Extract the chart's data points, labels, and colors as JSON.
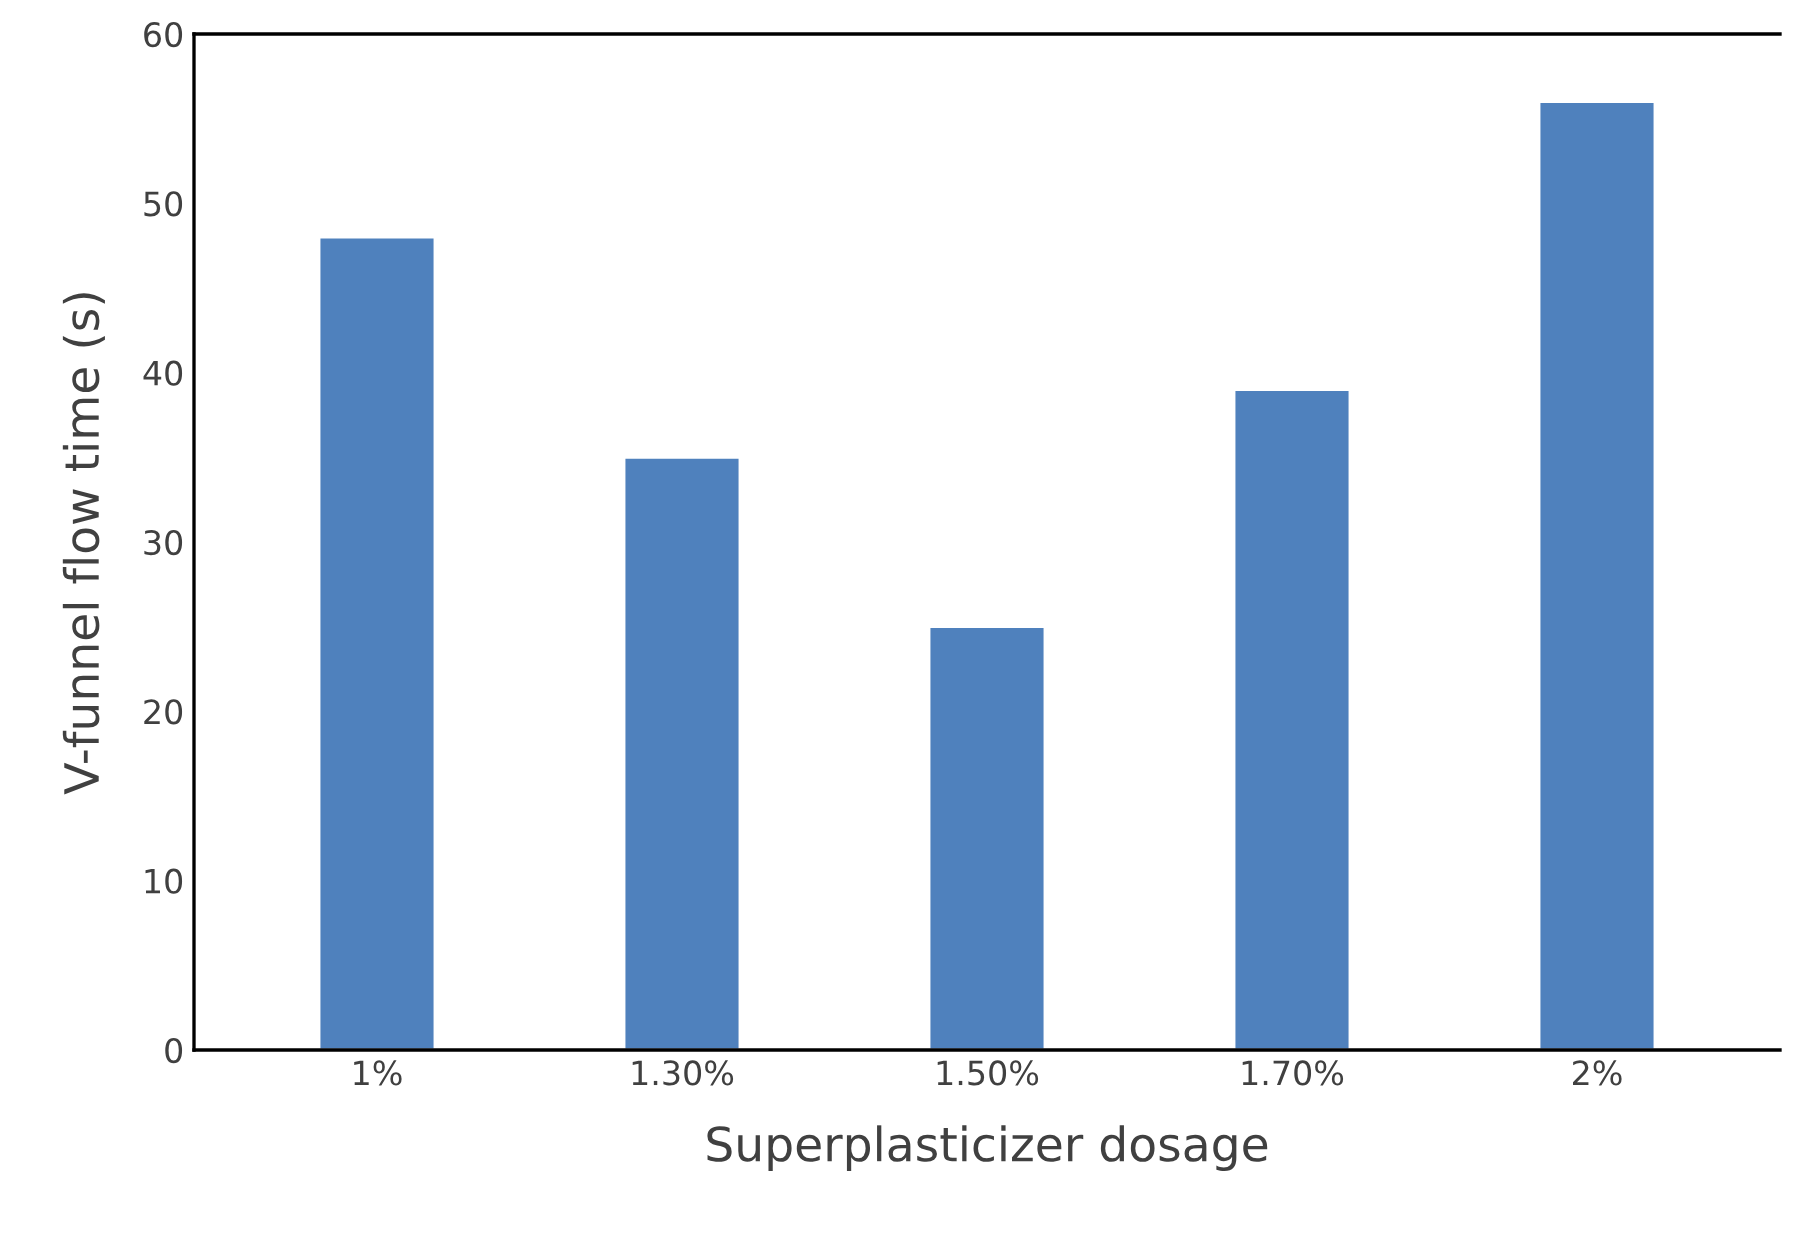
{
  "chart_data": {
    "type": "bar",
    "xlabel": "Superplasticizer dosage",
    "ylabel": "V-funnel flow time (s)",
    "categories": [
      "1%",
      "1.30%",
      "1.50%",
      "1.70%",
      "2%"
    ],
    "values": [
      48,
      35,
      25,
      39,
      56
    ],
    "color": "#4f81bd",
    "ylim": [
      0,
      60
    ],
    "yticks": [
      0,
      10,
      20,
      30,
      40,
      50,
      60
    ],
    "grid": false
  }
}
